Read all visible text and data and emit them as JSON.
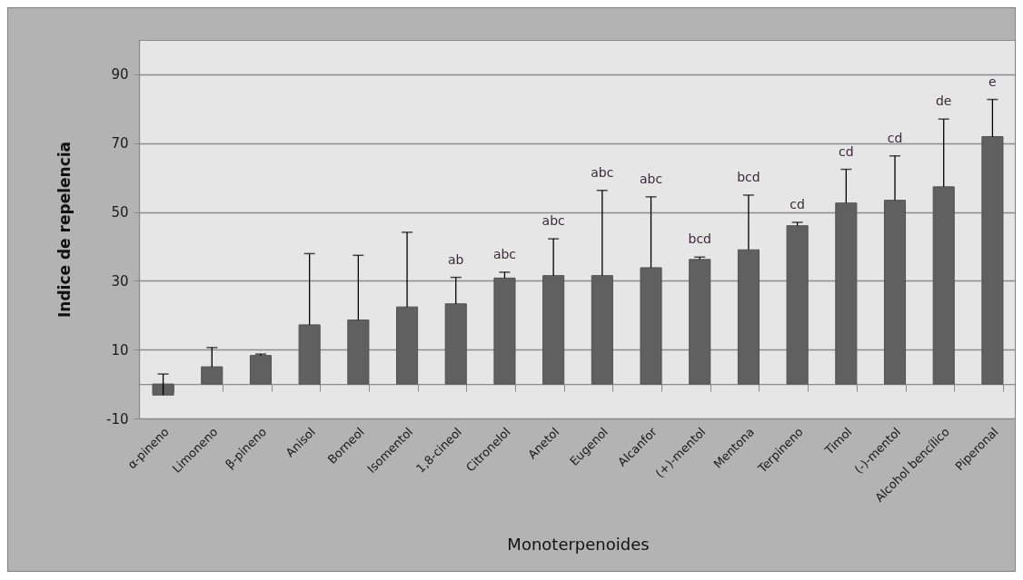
{
  "chart_data": {
    "type": "bar",
    "xlabel": "Monoterpenoides",
    "ylabel": "Indice de repelencia",
    "categories": [
      "α-pineno",
      "Limoneno",
      "β-pineno",
      "Anisol",
      "Borneol",
      "Isomentol",
      "1,8-cineol",
      "Citronelol",
      "Anetol",
      "Eugenol",
      "Alcanfor",
      "(+)-mentol",
      "Mentona",
      "Terpineno",
      "Timol",
      "(-)-mentol",
      "Alcohol bencílico",
      "Piperonal"
    ],
    "values": [
      -3.2,
      5.0,
      8.3,
      17.2,
      18.6,
      22.4,
      23.3,
      30.8,
      31.5,
      31.5,
      33.8,
      36.2,
      39.0,
      46.0,
      52.6,
      53.4,
      57.3,
      71.9
    ],
    "errors": [
      [
        -3.2,
        2.9
      ],
      [
        5.0,
        10.6
      ],
      [
        8.3,
        8.7
      ],
      [
        17.2,
        37.9
      ],
      [
        18.6,
        37.4
      ],
      [
        22.4,
        44.1
      ],
      [
        23.3,
        31.0
      ],
      [
        30.8,
        32.5
      ],
      [
        31.5,
        42.2
      ],
      [
        31.5,
        56.3
      ],
      [
        33.8,
        54.4
      ],
      [
        36.2,
        36.9
      ],
      [
        39.0,
        54.9
      ],
      [
        46.0,
        47.0
      ],
      [
        52.6,
        62.4
      ],
      [
        53.4,
        66.3
      ],
      [
        57.3,
        77.0
      ],
      [
        71.9,
        82.7
      ]
    ],
    "color": "#606060",
    "ylim": [
      -10,
      100
    ],
    "yticks": [
      -10,
      10,
      30,
      50,
      70,
      90
    ],
    "grid": "y",
    "annotations": [
      {
        "text": "ab",
        "x": "1,8-cineol",
        "y": 31.0
      },
      {
        "text": "abc",
        "x": "Citronelol",
        "y": 32.5
      },
      {
        "text": "abc",
        "x": "Anetol",
        "y": 42.2
      },
      {
        "text": "abc",
        "x": "Eugenol",
        "y": 56.3
      },
      {
        "text": "abc",
        "x": "Alcanfor",
        "y": 54.4
      },
      {
        "text": "bcd",
        "x": "(+)-mentol",
        "y": 36.9
      },
      {
        "text": "bcd",
        "x": "Mentona",
        "y": 54.9
      },
      {
        "text": "cd",
        "x": "Terpineno",
        "y": 47.0
      },
      {
        "text": "cd",
        "x": "Timol",
        "y": 62.4
      },
      {
        "text": "cd",
        "x": "(-)-mentol",
        "y": 66.3
      },
      {
        "text": "de",
        "x": "Alcohol bencílico",
        "y": 77.0
      },
      {
        "text": "e",
        "x": "Piperonal",
        "y": 82.7
      }
    ]
  }
}
